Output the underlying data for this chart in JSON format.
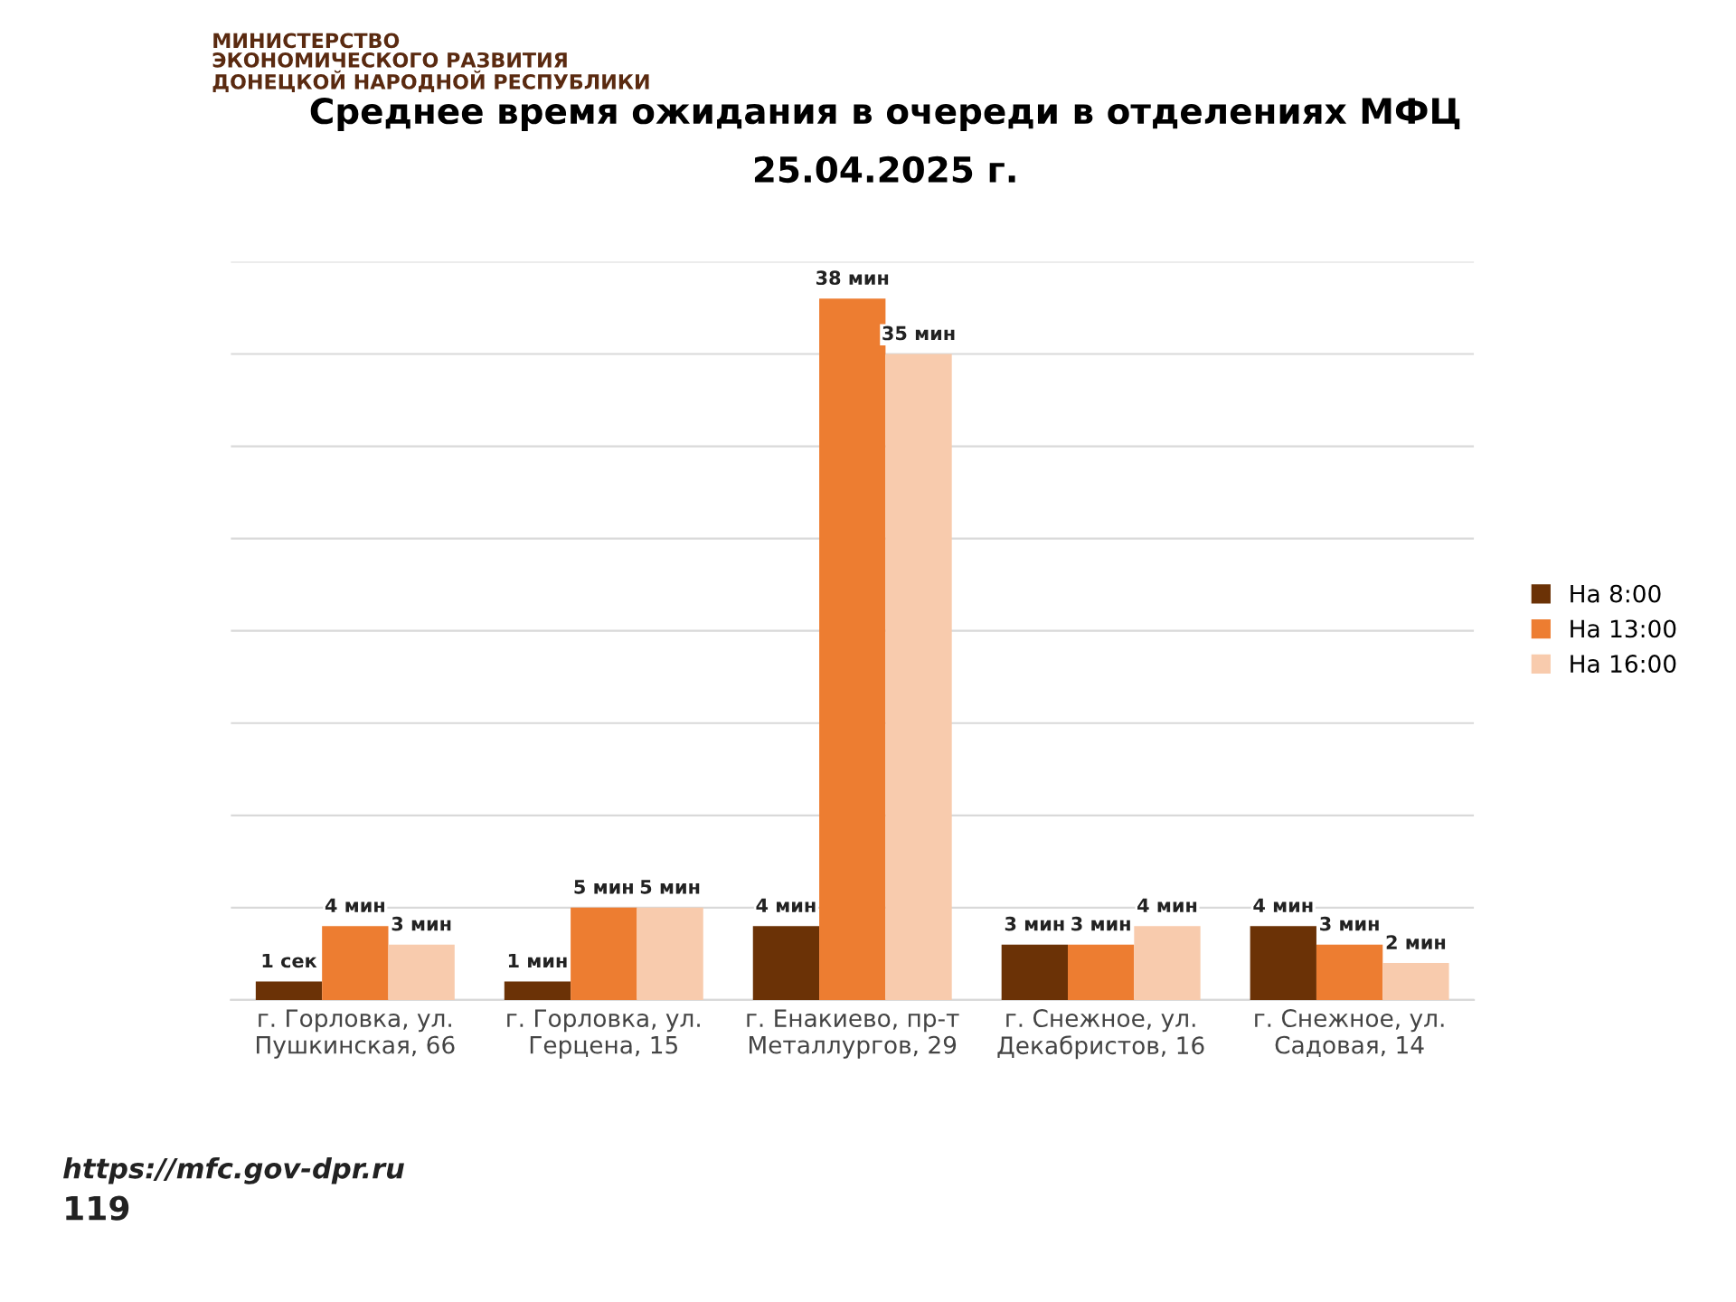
{
  "chart_data": {
    "type": "bar",
    "title": "Среднее время ожидания в очереди в отделениях МФЦ",
    "subtitle": "25.04.2025 г.",
    "categories": [
      "г. Горловка, ул. Пушкинская, 66",
      "г. Горловка, ул. Герцена, 15",
      "г. Енакиево, пр-т Металлургов, 29",
      "г. Снежное, ул. Декабристов, 16",
      "г. Снежное, ул. Садовая, 14"
    ],
    "series": [
      {
        "name": "На 8:00",
        "color": "#6b3206",
        "values": [
          1,
          1,
          4,
          3,
          4
        ],
        "value_labels": [
          "1 сек",
          "1 мин",
          "4 мин",
          "3 мин",
          "4 мин"
        ]
      },
      {
        "name": "На 13:00",
        "color": "#ed7d31",
        "values": [
          4,
          5,
          38,
          3,
          3
        ],
        "value_labels": [
          "4 мин",
          "5 мин",
          "38 мин",
          "3 мин",
          "3 мин"
        ]
      },
      {
        "name": "На 16:00",
        "color": "#f8cbad",
        "values": [
          3,
          5,
          35,
          4,
          2
        ],
        "value_labels": [
          "3 мин",
          "5 мин",
          "35 мин",
          "4 мин",
          "2 мин"
        ]
      }
    ],
    "ylim": [
      0,
      40
    ],
    "yticks": [
      {
        "value": 0,
        "label": null
      },
      {
        "value": 5,
        "label": null
      },
      {
        "value": 10,
        "label": null
      },
      {
        "value": 15,
        "label": null
      },
      {
        "value": 20,
        "label": null
      },
      {
        "value": 25,
        "label": null
      },
      {
        "value": 30,
        "label": null
      },
      {
        "value": 35,
        "label": null
      },
      {
        "value": 40,
        "label": null
      }
    ],
    "grid": "y",
    "tick_labels": "x",
    "legend": "right",
    "annotations": [
      "МИНИСТЕРСТВО\nЭКОНОМИЧЕСКОГО РАЗВИТИЯ\nДОНЕЦКОЙ НАРОДНОЙ РЕСПУБЛИКИ",
      "https://mfc.gov-dpr.ru",
      "119"
    ]
  }
}
